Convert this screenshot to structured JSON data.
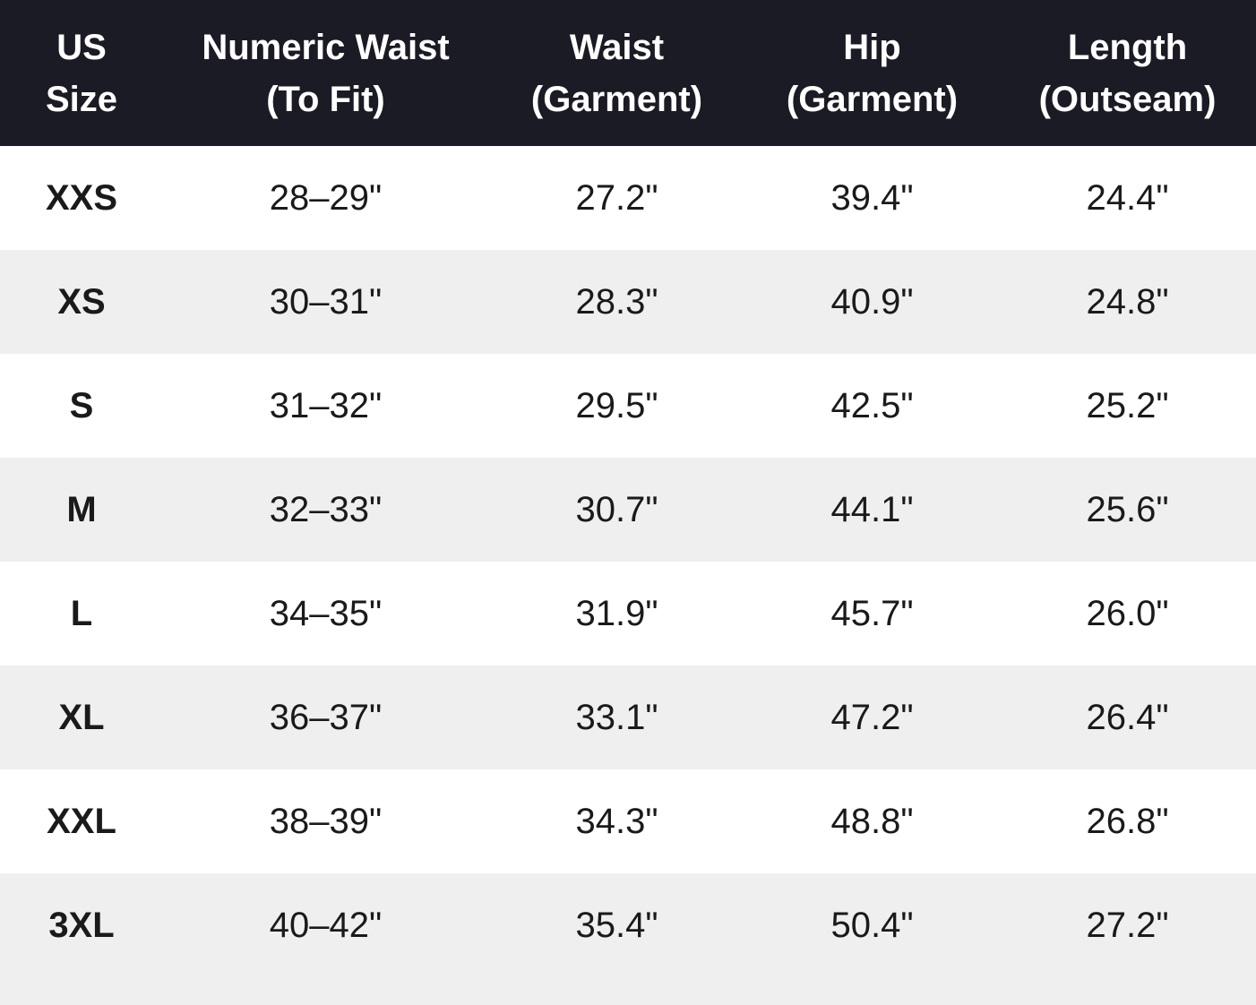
{
  "table": {
    "header": [
      [
        "US",
        "Size"
      ],
      [
        "Numeric Waist",
        "(To Fit)"
      ],
      [
        "Waist",
        "(Garment)"
      ],
      [
        "Hip",
        "(Garment)"
      ],
      [
        "Length",
        "(Outseam)"
      ]
    ],
    "rows": [
      [
        "XXS",
        "28–29\"",
        "27.2\"",
        "39.4\"",
        "24.4\""
      ],
      [
        "XS",
        "30–31\"",
        "28.3\"",
        "40.9\"",
        "24.8\""
      ],
      [
        "S",
        "31–32\"",
        "29.5\"",
        "42.5\"",
        "25.2\""
      ],
      [
        "M",
        "32–33\"",
        "30.7\"",
        "44.1\"",
        "25.6\""
      ],
      [
        "L",
        "34–35\"",
        "31.9\"",
        "45.7\"",
        "26.0\""
      ],
      [
        "XL",
        "36–37\"",
        "33.1\"",
        "47.2\"",
        "26.4\""
      ],
      [
        "XXL",
        "38–39\"",
        "34.3\"",
        "48.8\"",
        "26.8\""
      ],
      [
        "3XL",
        "40–42\"",
        "35.4\"",
        "50.4\"",
        "27.2\""
      ]
    ]
  }
}
